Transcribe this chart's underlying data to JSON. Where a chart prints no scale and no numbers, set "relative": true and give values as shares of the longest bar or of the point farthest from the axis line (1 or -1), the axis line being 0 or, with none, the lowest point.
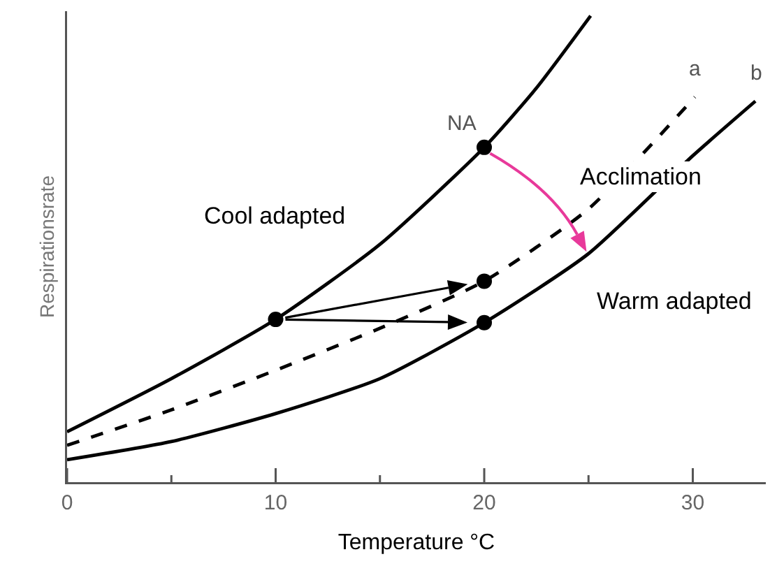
{
  "chart_data": {
    "type": "line",
    "relative": true,
    "xlabel": "Temperature °C",
    "ylabel": "Respirationsrate",
    "xlim": [
      0,
      33.5
    ],
    "xticks": [
      0,
      {
        "value": 5,
        "label": null
      },
      10,
      {
        "value": 15,
        "label": null
      },
      20,
      {
        "value": 25,
        "label": null
      },
      30
    ],
    "series": [
      {
        "color": "#000000",
        "line_style": "solid",
        "x": [
          0,
          5,
          10,
          15,
          20,
          22.5,
          25.1
        ],
        "values": [
          0.108,
          0.222,
          0.349,
          0.51,
          0.718,
          0.845,
          1
        ]
      },
      {
        "name": "a",
        "color": "#000000",
        "line_style": "dashed",
        "x": [
          0,
          5,
          10,
          15,
          20,
          25,
          30.1
        ],
        "values": [
          0.079,
          0.155,
          0.24,
          0.33,
          0.431,
          0.586,
          0.826
        ]
      },
      {
        "name": "b",
        "color": "#000000",
        "line_style": "solid",
        "x": [
          0,
          5,
          10,
          15,
          20,
          25,
          30,
          33
        ],
        "values": [
          0.048,
          0.087,
          0.147,
          0.222,
          0.342,
          0.49,
          0.7,
          0.817
        ]
      },
      {
        "type": "scatter",
        "color": "#000000",
        "marker": "circle",
        "x": [
          10,
          20,
          20,
          20
        ],
        "values": [
          0.349,
          0.718,
          0.431,
          0.342
        ]
      }
    ],
    "annotations": [
      {
        "text": "NA",
        "x": 20,
        "y": 0.718
      },
      "Cool adapted",
      "Acclimation",
      "Warm adapted"
    ],
    "marker": "none",
    "grid": false,
    "legend": false
  }
}
